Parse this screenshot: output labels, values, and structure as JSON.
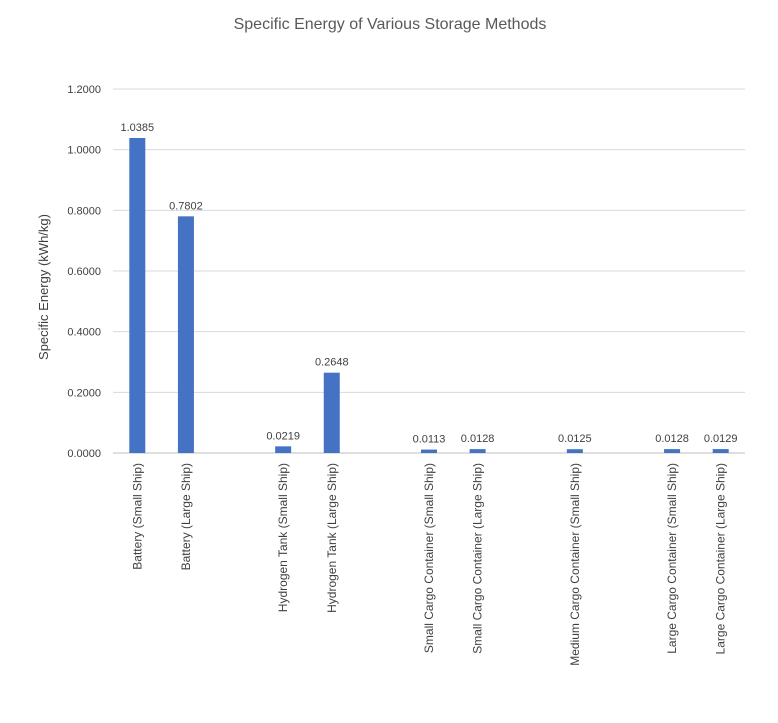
{
  "window": {
    "background": "#ffffff"
  },
  "chart_data": {
    "type": "bar",
    "title": "Specific Energy of Various Storage Methods",
    "xlabel": "",
    "ylabel": "Specific Energy (kWh/kg)",
    "ylim": [
      0,
      1.2
    ],
    "yticks": [
      "0.0000",
      "0.2000",
      "0.4000",
      "0.6000",
      "0.8000",
      "1.0000",
      "1.2000"
    ],
    "grid": true,
    "bar_color": "#4472c4",
    "categories": [
      "Battery (Small Ship)",
      "Battery (Large Ship)",
      "",
      "Hydrogen Tank (Small Ship)",
      "Hydrogen Tank (Large Ship)",
      "",
      "Small Cargo Container (Small Ship)",
      "Small Cargo Container (Large Ship)",
      "",
      "Medium Cargo Container (Small Ship)",
      "",
      "Large Cargo Container (Small Ship)",
      "Large Cargo Container (Large Ship)"
    ],
    "values": [
      1.0385,
      0.7802,
      null,
      0.0219,
      0.2648,
      null,
      0.0113,
      0.0128,
      null,
      0.0125,
      null,
      0.0128,
      0.0129
    ],
    "data_labels": [
      "1.0385",
      "0.7802",
      "",
      "0.0219",
      "0.2648",
      "",
      "0.0113",
      "0.0128",
      "",
      "0.0125",
      "",
      "0.0128",
      "0.0129"
    ]
  }
}
